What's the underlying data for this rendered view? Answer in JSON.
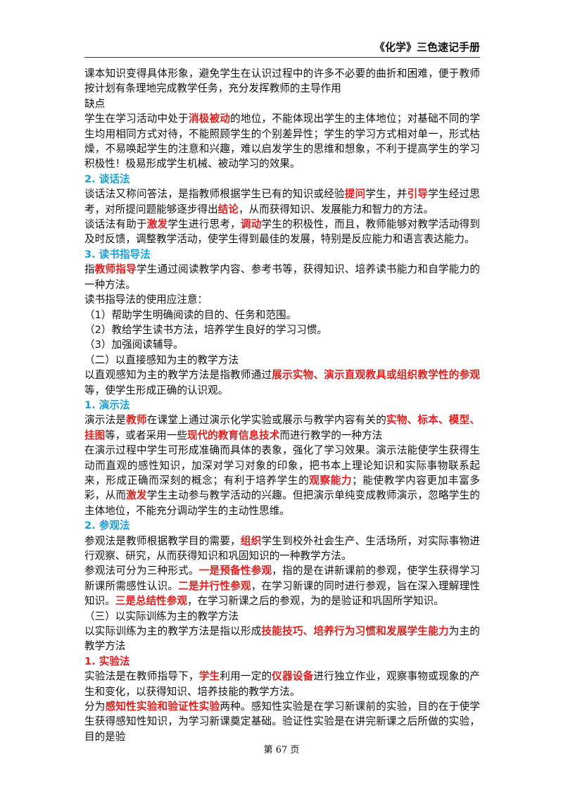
{
  "header": {
    "title": "《化学》三色速记手册"
  },
  "blocks": [
    {
      "kind": "para",
      "runs": [
        "课本知识变得具体形象，避免学生在认识过程中的许多不必要的曲折和困难，便于教师按计划有条理地完成教学任务，充分发挥教师的主导作用"
      ]
    },
    {
      "kind": "para",
      "runs": [
        "缺点"
      ]
    },
    {
      "kind": "para",
      "runs": [
        "学生在学习活动中处于",
        {
          "em": "消极被动"
        },
        "的地位，不能体现出学生的主体地位；对基础不同的学生均用相同方式对待，不能照顾学生的个别差异性；学生的学习方式相对单一，形式枯燥，不易唤起学生的注意和兴趣，难以启发学生的思维和想象，不利于提高学生的学习积极性！极易形成学生机械、被动学习的效果。"
      ]
    },
    {
      "kind": "heading",
      "runs": [
        "2. 谈话法"
      ]
    },
    {
      "kind": "para",
      "runs": [
        "谈话法又称问答法，是指教师根据学生已有的知识或经验",
        {
          "em": "提问"
        },
        "学生，并",
        {
          "em": "引导"
        },
        "学生经过思考，对所提问题能够逐步得出",
        {
          "em": "结论"
        },
        "，从而获得知识、发展能力和智力的方法。"
      ]
    },
    {
      "kind": "para",
      "runs": [
        "谈话法有助于",
        {
          "em": "激发"
        },
        "学生进行思考，",
        {
          "em": "调动"
        },
        "学生的积极性，而且，教师能够对教学活动得到及时反馈，调整教学活动，使学生得到最佳的发展，特别是反应能力和语言表达能力。"
      ]
    },
    {
      "kind": "heading",
      "runs": [
        "3. 读书指导法"
      ]
    },
    {
      "kind": "para",
      "runs": [
        "指",
        {
          "em": "教师指导"
        },
        "学生通过阅读教学内容、参考书等，获得知识、培养读书能力和自学能力的一种方法。"
      ]
    },
    {
      "kind": "para",
      "runs": [
        "读书指导法的使用应注意："
      ]
    },
    {
      "kind": "para",
      "runs": [
        "（1）帮助学生明确阅读的目的、任务和范围。"
      ]
    },
    {
      "kind": "para",
      "runs": [
        "（2）教给学生读书方法，培养学生良好的学习习惯。"
      ]
    },
    {
      "kind": "para",
      "runs": [
        "（3）加强阅读辅导。"
      ]
    },
    {
      "kind": "para",
      "runs": [
        "（二）以直接感知为主的教学方法"
      ]
    },
    {
      "kind": "para",
      "runs": [
        "以直观感知为主的教学方法是指教师通过",
        {
          "em": "展示实物、演示直观教具或组织教学性的参观"
        },
        "等，使学生形成正确的认识观。"
      ]
    },
    {
      "kind": "heading",
      "runs": [
        "1. 演示法"
      ]
    },
    {
      "kind": "para",
      "runs": [
        "演示法是",
        {
          "em": "教师"
        },
        "在课堂上通过演示化学实验或展示与教学内容有关的",
        {
          "em": "实物、标本、模型、挂图"
        },
        "等，或者采用一些",
        {
          "em": "现代的教育信息技术"
        },
        "而进行教学的一种方法"
      ]
    },
    {
      "kind": "para",
      "runs": [
        "在演示过程中学生可形成准确而具体的表象，强化了学习效果。演示法能使学生获得生动而直观的感性知识，加深对学习对象的印象，把书本上理论知识和实际事物联系起来，形成正确而深刻的概念；有利于培养学生的",
        {
          "em": "观察能力"
        },
        "；能使教学内容更加丰富多彩，从而",
        {
          "em": "激发"
        },
        "学生主动参与教学活动的兴趣。但把演示单纯变成教师演示，忽略学生的主体地位，不能充分调动学生的主动性思维。"
      ]
    },
    {
      "kind": "heading",
      "runs": [
        "2. 参观法"
      ]
    },
    {
      "kind": "para",
      "runs": [
        "参观法是教师根据教学目的需要，",
        {
          "em": "组织"
        },
        "学生到校外社会生产、生活场所，对实际事物进行观察、研究，从而获得知识和巩固知识的一种教学方法。"
      ]
    },
    {
      "kind": "para",
      "runs": [
        "参观法可分为三种形式。",
        {
          "em": "一是预备性参观"
        },
        "，指的是在讲新课前的参观，使学生获得学习新课所需感性认识。",
        {
          "em": "二是并行性参观"
        },
        "，在学习新课的同时进行参观，旨在深入理解理性知识。",
        {
          "em": "三是总结性参观"
        },
        "，在学习新课之后的参观，为的是验证和巩固所学知识。"
      ]
    },
    {
      "kind": "para",
      "runs": [
        "（三）以实际训练为主的教学方法"
      ]
    },
    {
      "kind": "para",
      "runs": [
        "以实际训练为主的教学方法是指以形成",
        {
          "em": "技能技巧、培养行为习惯和发展学生能力"
        },
        "为主的教学方法"
      ]
    },
    {
      "kind": "red-heading",
      "runs": [
        "1. 实验法"
      ]
    },
    {
      "kind": "para",
      "runs": [
        "实验法是在教师指导下，",
        {
          "em": "学生"
        },
        "利用一定的",
        {
          "em": "仪器设备"
        },
        "进行独立作业，观察事物或现象的产生和变化，以获得知识、培养技能的教学方法。"
      ]
    },
    {
      "kind": "para",
      "runs": [
        "分为",
        {
          "em": "感知性实验和验证性实验"
        },
        "两种。感知性实验是在学习新课前的实验，目的在于使学生获得感知性知识，为学习新课奠定基础。验证性实验是在讲完新课之后所做的实验，目的是验"
      ]
    }
  ],
  "footer": {
    "page": "第 67 页"
  }
}
